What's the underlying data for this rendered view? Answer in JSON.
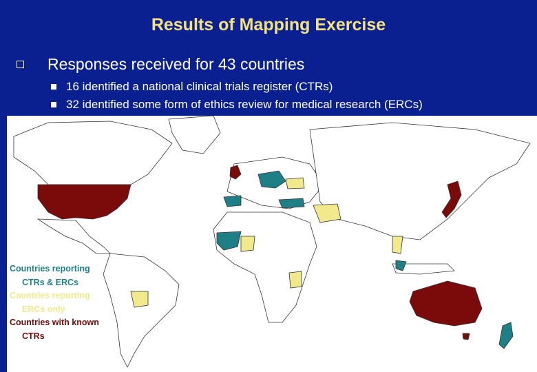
{
  "slide": {
    "title": "Results of Mapping Exercise",
    "main_bullet": "Responses received for 43 countries",
    "sub_bullets": [
      "16 identified a national clinical trials register (CTRs)",
      "32 identified some form of ethics review for medical research (ERCs)"
    ]
  },
  "legend": {
    "items": [
      {
        "line1": "Countries reporting",
        "line2": "CTRs & ERCs",
        "color": "#1f7f86"
      },
      {
        "line1": "Countries reporting",
        "line2": "ERCs only",
        "color": "#f1e98b"
      },
      {
        "line1": "Countries with known",
        "line2": "CTRs",
        "color": "#7b0a0a"
      }
    ]
  },
  "colors": {
    "background": "#0b2090",
    "title": "#f4e27a",
    "teal": "#1f7f86",
    "yellow": "#f1e98b",
    "maroon": "#7b0a0a"
  }
}
